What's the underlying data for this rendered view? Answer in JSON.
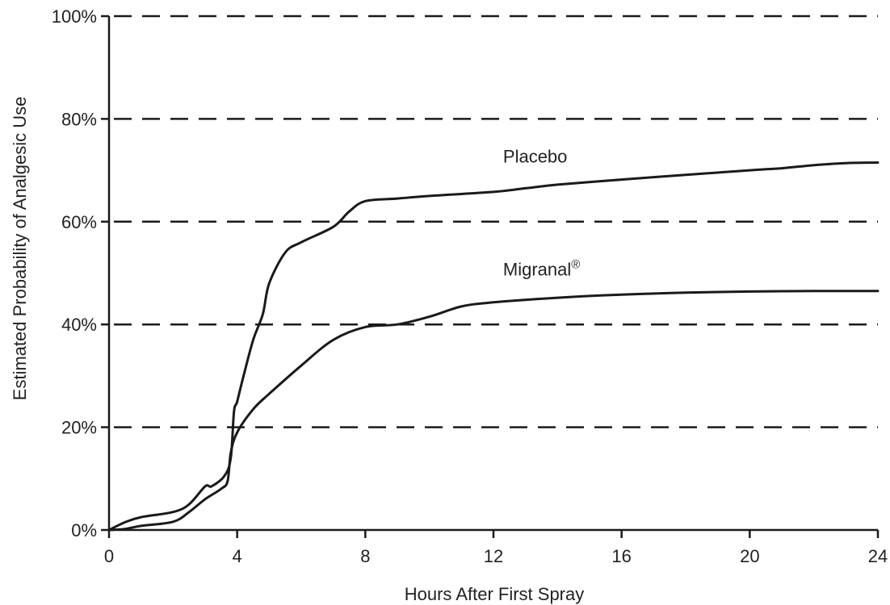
{
  "chart_data": {
    "type": "line",
    "xlabel": "Hours After First Spray",
    "ylabel": "Estimated Probability of Analgesic Use",
    "xlim": [
      0,
      24
    ],
    "ylim": [
      0,
      100
    ],
    "x_ticks": [
      "0",
      "4",
      "8",
      "12",
      "16",
      "20",
      "24"
    ],
    "x_tick_values": [
      0,
      4,
      8,
      12,
      16,
      20,
      24
    ],
    "y_ticks": [
      "0%",
      "20%",
      "40%",
      "60%",
      "80%",
      "100%"
    ],
    "y_tick_values": [
      0,
      20,
      40,
      60,
      80,
      100
    ],
    "grid": "horizontal dashed",
    "series": [
      {
        "name": "Placebo",
        "x": [
          0,
          0.5,
          1,
          2,
          2.5,
          3,
          3.2,
          3.6,
          3.8,
          3.9,
          4.0,
          4.2,
          4.5,
          4.8,
          5.0,
          5.5,
          6.0,
          7.0,
          7.5,
          8.0,
          9,
          10,
          12,
          13,
          14,
          16,
          18,
          20,
          21,
          22,
          23,
          24
        ],
        "y": [
          0,
          1.5,
          2.5,
          3.5,
          5,
          8.5,
          8.5,
          10.5,
          14,
          23,
          25,
          30,
          37,
          42,
          48,
          54,
          56,
          59,
          62,
          64,
          64.5,
          65,
          65.8,
          66.5,
          67.2,
          68.2,
          69.1,
          70,
          70.4,
          71,
          71.4,
          71.5
        ]
      },
      {
        "name": "Migranal®",
        "x": [
          0,
          0.5,
          1,
          2,
          2.5,
          3,
          3.5,
          3.7,
          3.8,
          4.0,
          4.5,
          5,
          6,
          7,
          8,
          9,
          10,
          11,
          12,
          14,
          16,
          18,
          20,
          22,
          24
        ],
        "y": [
          0,
          0.2,
          0.8,
          1.6,
          3.5,
          6,
          8,
          9.5,
          15,
          19,
          23.5,
          26.5,
          32,
          37,
          39.5,
          40,
          41.5,
          43.5,
          44.3,
          45.2,
          45.8,
          46.2,
          46.4,
          46.5,
          46.5
        ]
      }
    ],
    "annotations": [
      {
        "text": "Placebo",
        "x": 12.3,
        "y": 71.5
      },
      {
        "text": "Migranal",
        "superscript": "®",
        "x": 12.3,
        "y": 49.5
      }
    ]
  }
}
